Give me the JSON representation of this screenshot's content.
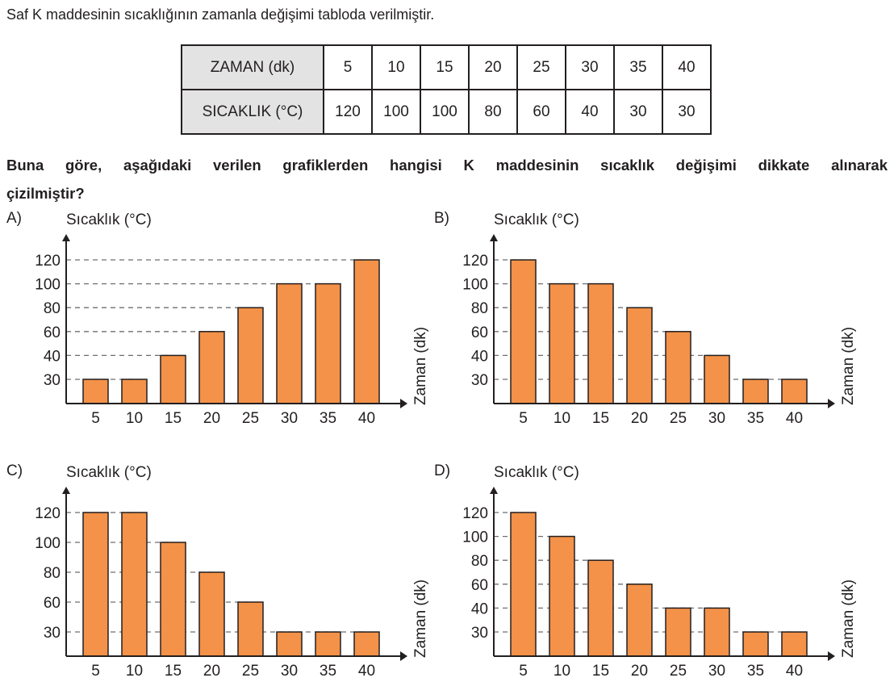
{
  "intro": "Saf K maddesinin sıcaklığının zamanla değişimi tabloda verilmiştir.",
  "table": {
    "rows": [
      {
        "header": "ZAMAN (dk)",
        "cells": [
          "5",
          "10",
          "15",
          "20",
          "25",
          "30",
          "35",
          "40"
        ]
      },
      {
        "header": "SICAKLIK (°C)",
        "cells": [
          "120",
          "100",
          "100",
          "80",
          "60",
          "40",
          "30",
          "30"
        ]
      }
    ]
  },
  "question": {
    "line1": "Buna göre, aşağıdaki verilen grafiklerden hangisi K maddesinin sıcaklık değişimi dikkate alınarak",
    "line2": "çizilmiştir?"
  },
  "colors": {
    "bar": "#f39248",
    "stroke": "#231f20",
    "grid": "#6d6e70"
  },
  "chart_data": [
    {
      "type": "bar",
      "option": "A)",
      "ylabel": "Sıcaklık (°C)",
      "xlabel": "Zaman (dk)",
      "categories": [
        "5",
        "10",
        "15",
        "20",
        "25",
        "30",
        "35",
        "40"
      ],
      "yticks": [
        30,
        40,
        60,
        80,
        100,
        120
      ],
      "values": [
        30,
        30,
        40,
        60,
        80,
        100,
        100,
        120
      ],
      "grid": "dashed"
    },
    {
      "type": "bar",
      "option": "B)",
      "ylabel": "Sıcaklık (°C)",
      "xlabel": "Zaman (dk)",
      "categories": [
        "5",
        "10",
        "15",
        "20",
        "25",
        "30",
        "35",
        "40"
      ],
      "yticks": [
        30,
        40,
        60,
        80,
        100,
        120
      ],
      "values": [
        120,
        100,
        100,
        80,
        60,
        40,
        30,
        30
      ],
      "grid": "dashed"
    },
    {
      "type": "bar",
      "option": "C)",
      "ylabel": "Sıcaklık (°C)",
      "xlabel": "Zaman (dk)",
      "categories": [
        "5",
        "10",
        "15",
        "20",
        "25",
        "30",
        "35",
        "40"
      ],
      "yticks": [
        30,
        60,
        80,
        100,
        120
      ],
      "values": [
        120,
        120,
        100,
        80,
        60,
        30,
        30,
        30
      ],
      "grid": "dashed"
    },
    {
      "type": "bar",
      "option": "D)",
      "ylabel": "Sıcaklık (°C)",
      "xlabel": "Zaman (dk)",
      "categories": [
        "5",
        "10",
        "15",
        "20",
        "25",
        "30",
        "35",
        "40"
      ],
      "yticks": [
        30,
        40,
        60,
        80,
        100,
        120
      ],
      "values": [
        120,
        100,
        80,
        60,
        40,
        40,
        30,
        30
      ],
      "grid": "dashed"
    }
  ]
}
